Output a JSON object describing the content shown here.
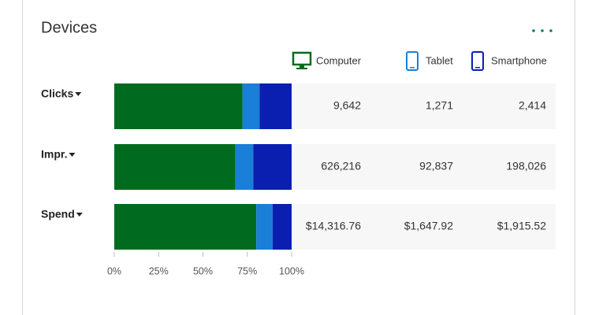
{
  "chart_data": {
    "type": "bar",
    "stacking": "percent",
    "title": "Devices",
    "categories": [
      "Clicks",
      "Impr.",
      "Spend"
    ],
    "series": [
      {
        "name": "Computer",
        "color": "#006b1f",
        "values": [
          9642,
          626216,
          14316.76
        ],
        "value_labels": [
          "9,642",
          "626,216",
          "$14,316.76"
        ]
      },
      {
        "name": "Tablet",
        "color": "#1a7fd6",
        "values": [
          1271,
          92837,
          1647.92
        ],
        "value_labels": [
          "1,271",
          "92,837",
          "$1,647.92"
        ]
      },
      {
        "name": "Smartphone",
        "color": "#0a1fb0",
        "values": [
          2414,
          198026,
          1915.52
        ],
        "value_labels": [
          "2,414",
          "198,026",
          "$1,915.52"
        ]
      }
    ],
    "xlim": [
      0,
      100
    ],
    "xticks": [
      {
        "value": 0,
        "label": "0%"
      },
      {
        "value": 25,
        "label": "25%"
      },
      {
        "value": 50,
        "label": "50%"
      },
      {
        "value": 75,
        "label": "75%"
      },
      {
        "value": 100,
        "label": "100%"
      }
    ]
  }
}
